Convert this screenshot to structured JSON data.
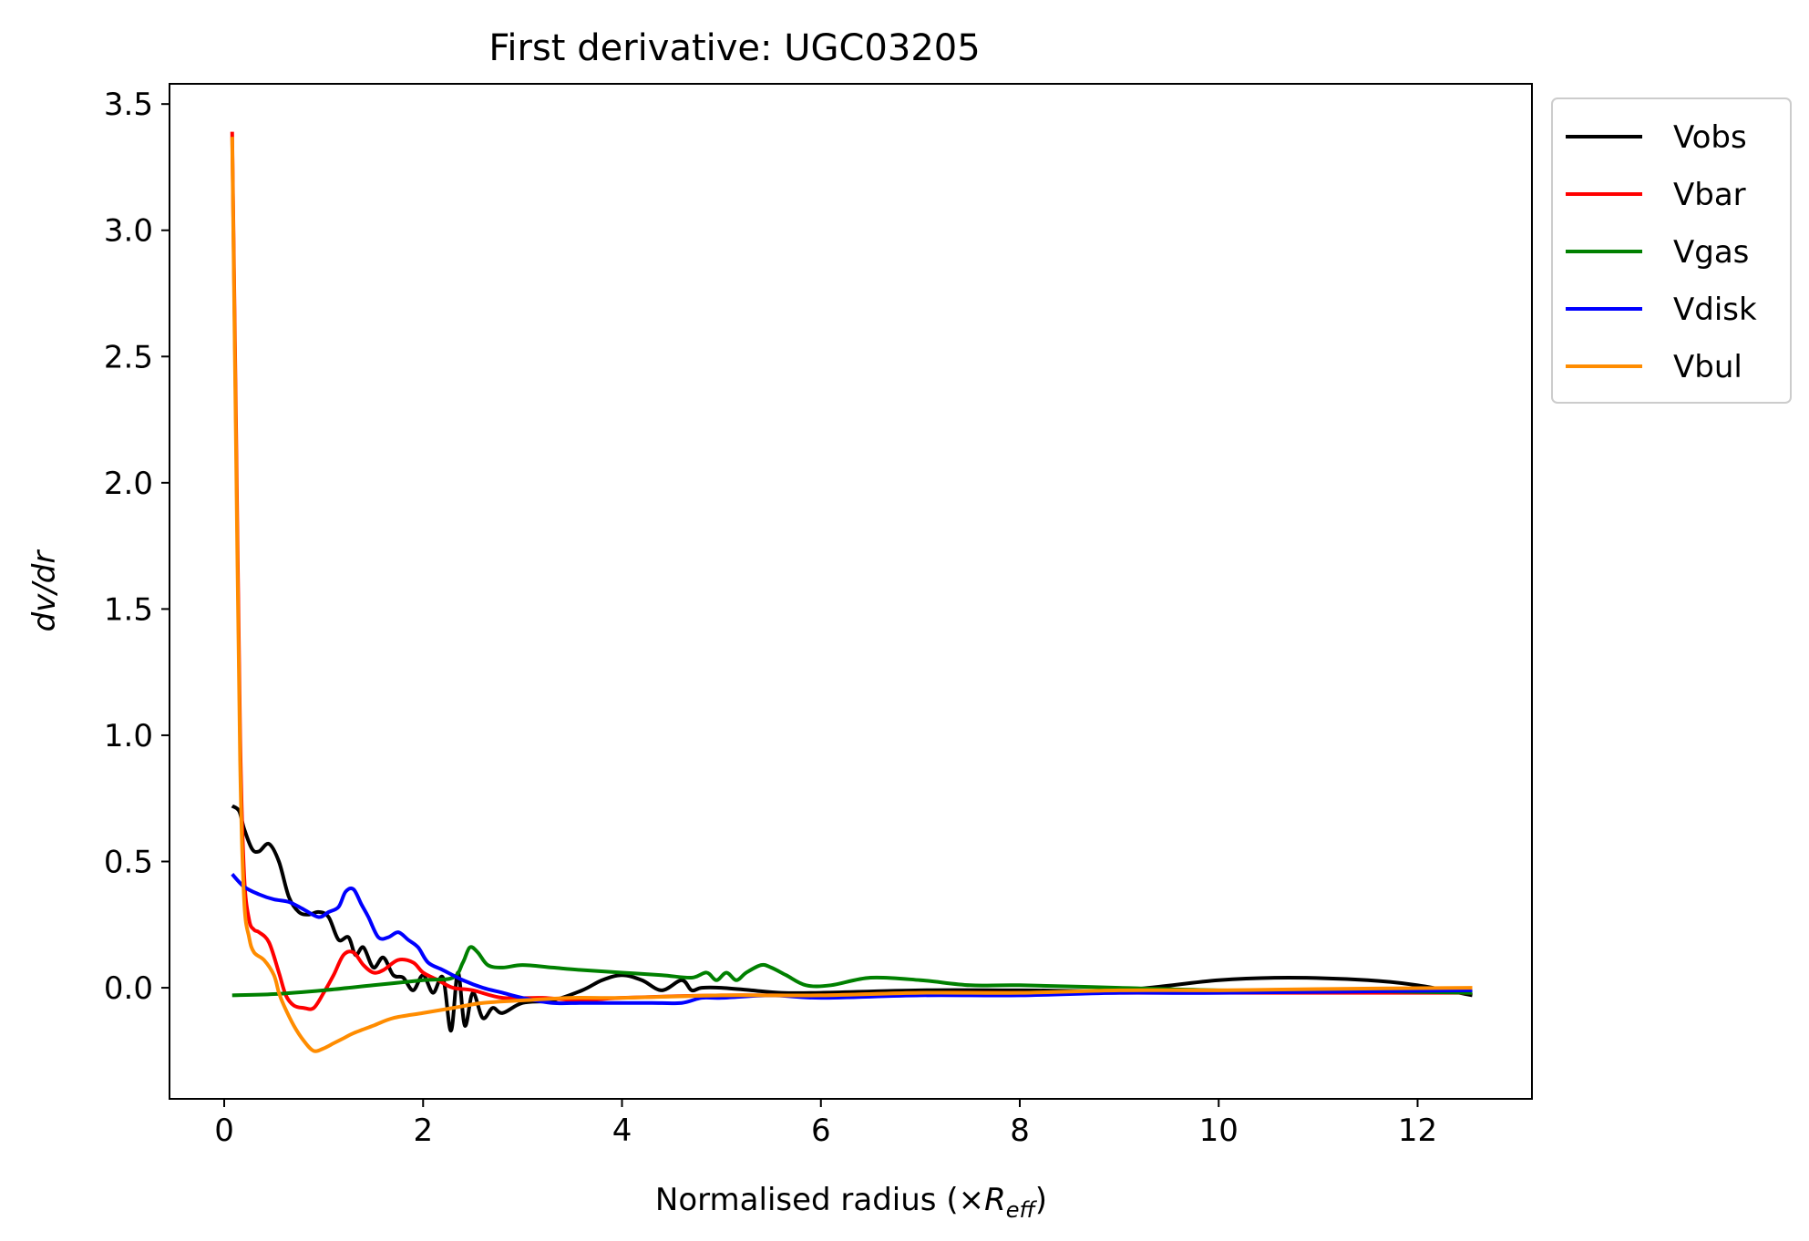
{
  "chart_data": {
    "type": "line",
    "title": "First derivative: UGC03205",
    "xlabel": {
      "prefix": "Normalised radius (×",
      "sym": "R",
      "sub": "eff",
      "suffix": ")"
    },
    "ylabel": "dv/dr",
    "xlim": [
      -0.55,
      13.15
    ],
    "ylim": [
      -0.44,
      3.58
    ],
    "xticks": [
      0,
      2,
      4,
      6,
      8,
      10,
      12
    ],
    "yticks": [
      0.0,
      0.5,
      1.0,
      1.5,
      2.0,
      2.5,
      3.0,
      3.5
    ],
    "ytick_labels": [
      "0.0",
      "0.5",
      "1.0",
      "1.5",
      "2.0",
      "2.5",
      "3.0",
      "3.5"
    ],
    "grid": false,
    "legend_position": "outside-top-right",
    "series": [
      {
        "name": "Vobs",
        "color": "#000000",
        "x": [
          0.08,
          0.15,
          0.2,
          0.28,
          0.35,
          0.45,
          0.55,
          0.65,
          0.75,
          0.85,
          0.95,
          1.05,
          1.15,
          1.25,
          1.32,
          1.4,
          1.5,
          1.6,
          1.7,
          1.8,
          1.9,
          2.0,
          2.1,
          2.2,
          2.28,
          2.35,
          2.42,
          2.5,
          2.6,
          2.7,
          2.8,
          3.0,
          3.3,
          3.6,
          3.8,
          4.0,
          4.2,
          4.4,
          4.6,
          4.7,
          4.8,
          5.0,
          5.3,
          5.6,
          6.0,
          7.0,
          8.0,
          9.0,
          10.0,
          10.7,
          11.5,
          12.0,
          12.55
        ],
        "y": [
          0.72,
          0.7,
          0.63,
          0.55,
          0.54,
          0.57,
          0.5,
          0.36,
          0.3,
          0.29,
          0.3,
          0.28,
          0.19,
          0.2,
          0.13,
          0.16,
          0.08,
          0.12,
          0.05,
          0.04,
          -0.01,
          0.05,
          -0.02,
          0.04,
          -0.17,
          0.06,
          -0.15,
          -0.02,
          -0.12,
          -0.08,
          -0.1,
          -0.06,
          -0.05,
          -0.01,
          0.03,
          0.05,
          0.03,
          -0.01,
          0.03,
          -0.01,
          0.0,
          0.0,
          -0.01,
          -0.02,
          -0.02,
          -0.01,
          -0.01,
          -0.01,
          0.03,
          0.04,
          0.03,
          0.01,
          -0.03
        ]
      },
      {
        "name": "Vbar",
        "color": "#ff0000",
        "x": [
          0.08,
          0.12,
          0.16,
          0.2,
          0.25,
          0.3,
          0.35,
          0.45,
          0.55,
          0.62,
          0.7,
          0.8,
          0.9,
          1.0,
          1.1,
          1.2,
          1.3,
          1.4,
          1.5,
          1.6,
          1.75,
          1.9,
          2.0,
          2.15,
          2.3,
          2.5,
          2.8,
          3.2,
          3.6,
          4.0,
          5.0,
          6.0,
          7.0,
          8.0,
          9.0,
          10.0,
          11.0,
          12.55
        ],
        "y": [
          3.39,
          2.2,
          1.0,
          0.45,
          0.27,
          0.23,
          0.22,
          0.18,
          0.06,
          -0.03,
          -0.07,
          -0.08,
          -0.08,
          -0.02,
          0.05,
          0.13,
          0.14,
          0.09,
          0.06,
          0.07,
          0.11,
          0.1,
          0.06,
          0.03,
          0.0,
          -0.01,
          -0.04,
          -0.04,
          -0.05,
          -0.04,
          -0.03,
          -0.03,
          -0.02,
          -0.02,
          -0.02,
          -0.02,
          -0.02,
          -0.02
        ]
      },
      {
        "name": "Vgas",
        "color": "#008000",
        "x": [
          0.08,
          0.5,
          1.0,
          1.5,
          2.0,
          2.3,
          2.4,
          2.47,
          2.55,
          2.65,
          2.8,
          3.0,
          3.3,
          3.6,
          4.0,
          4.4,
          4.7,
          4.85,
          4.95,
          5.05,
          5.15,
          5.25,
          5.4,
          5.5,
          5.65,
          5.85,
          6.1,
          6.5,
          7.0,
          7.5,
          8.0,
          9.0,
          10.0,
          11.0,
          12.55
        ],
        "y": [
          -0.03,
          -0.025,
          -0.01,
          0.01,
          0.03,
          0.04,
          0.1,
          0.16,
          0.14,
          0.09,
          0.08,
          0.09,
          0.08,
          0.07,
          0.06,
          0.05,
          0.04,
          0.06,
          0.03,
          0.06,
          0.03,
          0.06,
          0.09,
          0.08,
          0.05,
          0.01,
          0.01,
          0.04,
          0.03,
          0.01,
          0.01,
          0.0,
          -0.01,
          -0.01,
          -0.02
        ]
      },
      {
        "name": "Vdisk",
        "color": "#0000ff",
        "x": [
          0.08,
          0.2,
          0.35,
          0.5,
          0.65,
          0.8,
          0.95,
          1.05,
          1.15,
          1.22,
          1.3,
          1.38,
          1.45,
          1.55,
          1.65,
          1.75,
          1.85,
          1.95,
          2.05,
          2.2,
          2.4,
          2.6,
          2.8,
          3.0,
          3.3,
          3.6,
          4.0,
          4.3,
          4.6,
          4.8,
          5.0,
          5.5,
          6.0,
          7.0,
          8.0,
          9.0,
          10.0,
          12.55
        ],
        "y": [
          0.45,
          0.4,
          0.37,
          0.35,
          0.34,
          0.31,
          0.28,
          0.3,
          0.32,
          0.38,
          0.39,
          0.33,
          0.28,
          0.2,
          0.2,
          0.22,
          0.19,
          0.16,
          0.1,
          0.07,
          0.03,
          0.0,
          -0.02,
          -0.04,
          -0.06,
          -0.06,
          -0.06,
          -0.06,
          -0.06,
          -0.04,
          -0.04,
          -0.03,
          -0.04,
          -0.03,
          -0.03,
          -0.02,
          -0.02,
          -0.01
        ]
      },
      {
        "name": "Vbul",
        "color": "#ff8c00",
        "x": [
          0.08,
          0.12,
          0.16,
          0.2,
          0.25,
          0.3,
          0.4,
          0.5,
          0.55,
          0.6,
          0.7,
          0.8,
          0.9,
          1.0,
          1.1,
          1.2,
          1.3,
          1.5,
          1.7,
          2.0,
          2.3,
          2.6,
          3.0,
          3.5,
          4.0,
          5.0,
          6.0,
          7.0,
          8.0,
          9.0,
          10.0,
          11.0,
          12.55
        ],
        "y": [
          3.37,
          2.1,
          0.9,
          0.35,
          0.2,
          0.14,
          0.11,
          0.05,
          -0.02,
          -0.07,
          -0.15,
          -0.21,
          -0.25,
          -0.24,
          -0.22,
          -0.2,
          -0.18,
          -0.15,
          -0.12,
          -0.1,
          -0.08,
          -0.06,
          -0.05,
          -0.04,
          -0.04,
          -0.03,
          -0.03,
          -0.02,
          -0.02,
          -0.01,
          -0.01,
          -0.005,
          0.0
        ]
      }
    ]
  }
}
